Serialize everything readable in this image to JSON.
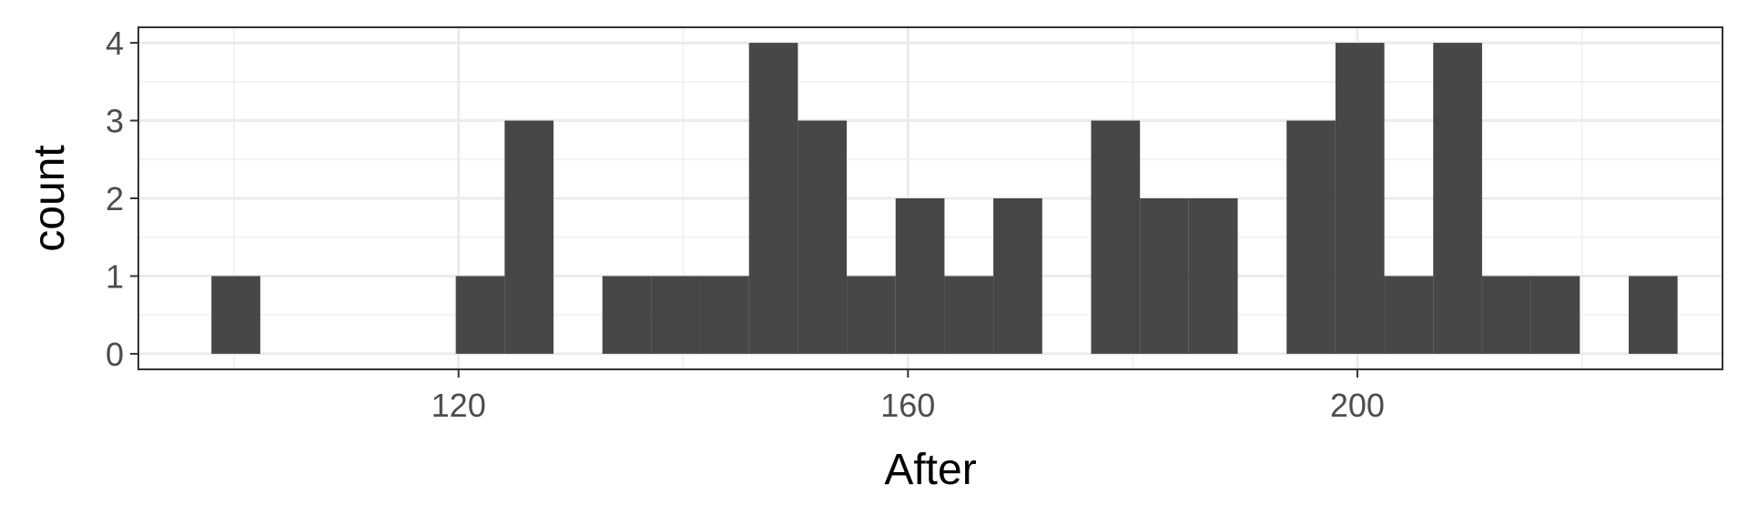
{
  "chart_data": {
    "type": "bar",
    "subtype": "histogram",
    "xlabel": "After",
    "ylabel": "count",
    "xlim": [
      91.5,
      232.5
    ],
    "ylim": [
      -0.2,
      4.2
    ],
    "x_ticks": [
      120,
      160,
      200
    ],
    "y_ticks": [
      0,
      1,
      2,
      3,
      4
    ],
    "x_minor_ticks": [
      100,
      140,
      180,
      220
    ],
    "bin_width": 4.35,
    "bins": [
      {
        "x0": 98.0,
        "x1": 102.35,
        "count": 1
      },
      {
        "x0": 102.35,
        "x1": 106.7,
        "count": 0
      },
      {
        "x0": 106.7,
        "x1": 111.05,
        "count": 0
      },
      {
        "x0": 111.05,
        "x1": 115.4,
        "count": 0
      },
      {
        "x0": 115.4,
        "x1": 119.75,
        "count": 0
      },
      {
        "x0": 119.75,
        "x1": 124.1,
        "count": 1
      },
      {
        "x0": 124.1,
        "x1": 128.45,
        "count": 3
      },
      {
        "x0": 128.45,
        "x1": 132.8,
        "count": 0
      },
      {
        "x0": 132.8,
        "x1": 137.15,
        "count": 1
      },
      {
        "x0": 137.15,
        "x1": 141.5,
        "count": 1
      },
      {
        "x0": 141.5,
        "x1": 145.85,
        "count": 1
      },
      {
        "x0": 145.85,
        "x1": 150.2,
        "count": 4
      },
      {
        "x0": 150.2,
        "x1": 154.55,
        "count": 3
      },
      {
        "x0": 154.55,
        "x1": 158.9,
        "count": 1
      },
      {
        "x0": 158.9,
        "x1": 163.25,
        "count": 2
      },
      {
        "x0": 163.25,
        "x1": 167.6,
        "count": 1
      },
      {
        "x0": 167.6,
        "x1": 171.95,
        "count": 2
      },
      {
        "x0": 171.95,
        "x1": 176.3,
        "count": 0
      },
      {
        "x0": 176.3,
        "x1": 180.65,
        "count": 3
      },
      {
        "x0": 180.65,
        "x1": 185.0,
        "count": 2
      },
      {
        "x0": 185.0,
        "x1": 189.35,
        "count": 2
      },
      {
        "x0": 189.35,
        "x1": 193.7,
        "count": 0
      },
      {
        "x0": 193.7,
        "x1": 198.05,
        "count": 3
      },
      {
        "x0": 198.05,
        "x1": 202.4,
        "count": 4
      },
      {
        "x0": 202.4,
        "x1": 206.75,
        "count": 1
      },
      {
        "x0": 206.75,
        "x1": 211.1,
        "count": 4
      },
      {
        "x0": 211.1,
        "x1": 215.45,
        "count": 1
      },
      {
        "x0": 215.45,
        "x1": 219.8,
        "count": 1
      },
      {
        "x0": 219.8,
        "x1": 224.15,
        "count": 0
      },
      {
        "x0": 224.15,
        "x1": 228.5,
        "count": 1
      }
    ],
    "grid": true,
    "legend": "none",
    "colors": {
      "bar_fill": "#474747",
      "panel_border": "#333333",
      "grid_major": "#ebebeb",
      "grid_minor": "#f2f2f2",
      "tick_text": "#4d4d4d",
      "axis_title": "#000000"
    }
  }
}
